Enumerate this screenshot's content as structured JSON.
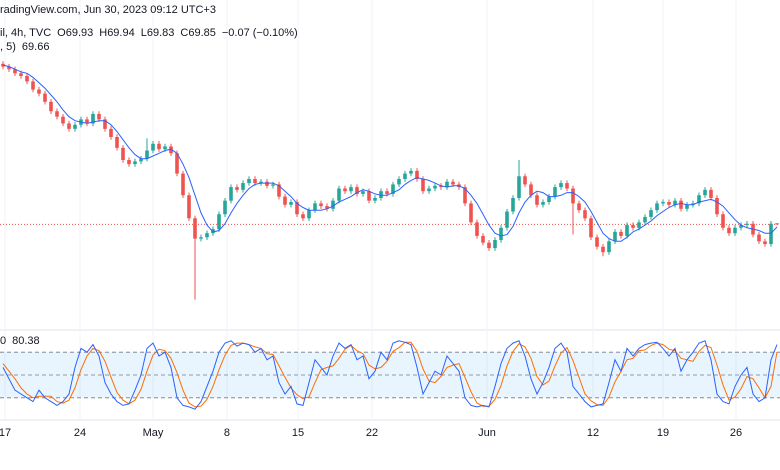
{
  "chart_data": {
    "type": "candlestick",
    "header": "radingView.com, Jun 30, 2023 09:12 UTC+3",
    "symbol": "il, 4h, TVC",
    "ohlc_labels": [
      "O69.93",
      "H69.94",
      "L69.83",
      "C69.85"
    ],
    "change": "−0.07 (−0.10%)",
    "up_color": "#26a69a",
    "down_color": "#ef5350",
    "xlim": [
      -0.5,
      129.5
    ],
    "ylim": [
      62.5,
      83.9
    ],
    "xticks": [
      {
        "value": 0.33,
        "label": "17"
      },
      {
        "value": 12.83,
        "label": "24"
      },
      {
        "value": 25,
        "label": "May"
      },
      {
        "value": 37.33,
        "label": "8"
      },
      {
        "value": 49.17,
        "label": "15"
      },
      {
        "value": 61.5,
        "label": "22"
      },
      {
        "value": 80.67,
        "label": "Jun"
      },
      {
        "value": 98.33,
        "label": "12"
      },
      {
        "value": 110,
        "label": "19"
      },
      {
        "value": 122.17,
        "label": "26"
      }
    ],
    "open": [
      81.7,
      81.5,
      81.3,
      81.0,
      80.8,
      80.4,
      79.8,
      79.5,
      78.9,
      78.2,
      77.8,
      77.3,
      76.9,
      77.2,
      77.6,
      77.3,
      78.0,
      77.6,
      76.9,
      76.3,
      75.5,
      74.6,
      74.3,
      74.5,
      74.7,
      75.3,
      75.8,
      75.4,
      75.6,
      75.1,
      73.6,
      72.0,
      70.3,
      68.8,
      68.9,
      69.2,
      69.5,
      70.6,
      71.6,
      72.6,
      72.4,
      72.9,
      73.2,
      72.9,
      73.0,
      72.7,
      72.8,
      71.9,
      71.3,
      71.5,
      70.6,
      70.3,
      70.9,
      71.4,
      71.2,
      71.0,
      71.6,
      72.5,
      72.3,
      72.6,
      72.1,
      72.3,
      71.6,
      71.8,
      72.3,
      72.1,
      72.8,
      73.2,
      73.6,
      73.8,
      73.2,
      72.3,
      72.5,
      72.7,
      72.6,
      73.0,
      72.8,
      72.6,
      71.4,
      70.0,
      69.0,
      68.5,
      68.1,
      68.7,
      69.6,
      70.8,
      71.8,
      73.4,
      72.8,
      72.0,
      71.3,
      71.5,
      71.9,
      72.6,
      72.9,
      72.5,
      71.4,
      70.9,
      70.3,
      68.9,
      68.2,
      67.8,
      68.6,
      69.3,
      69.0,
      69.8,
      69.6,
      70.0,
      70.4,
      70.9,
      71.4,
      71.5,
      71.3,
      71.6,
      71.0,
      71.3,
      71.4,
      72.0,
      72.4,
      71.8,
      70.6,
      69.6,
      69.2,
      69.6,
      69.8,
      69.9,
      69.1,
      68.6,
      68.4,
      69.93
    ],
    "high": [
      81.9,
      81.7,
      81.5,
      81.2,
      81.0,
      80.6,
      80.0,
      79.7,
      79.1,
      78.4,
      78.0,
      77.5,
      77.4,
      77.8,
      77.8,
      78.2,
      78.2,
      77.8,
      77.1,
      76.5,
      75.7,
      74.8,
      74.7,
      74.9,
      76.2,
      76.0,
      76.0,
      75.8,
      75.8,
      75.3,
      73.8,
      72.2,
      70.5,
      69.1,
      69.4,
      69.7,
      70.8,
      71.8,
      72.8,
      72.8,
      73.1,
      73.4,
      73.4,
      73.2,
      73.2,
      73.0,
      73.0,
      72.1,
      71.7,
      71.7,
      70.8,
      71.1,
      71.6,
      71.6,
      71.4,
      71.8,
      72.7,
      72.7,
      72.8,
      72.8,
      72.5,
      72.5,
      72.0,
      72.5,
      72.5,
      73.0,
      73.4,
      73.8,
      74.0,
      74.0,
      73.4,
      72.7,
      72.9,
      72.9,
      73.2,
      73.2,
      73.0,
      72.8,
      71.6,
      70.2,
      69.2,
      68.7,
      68.9,
      69.8,
      71.0,
      72.0,
      74.6,
      73.6,
      73.0,
      72.2,
      71.7,
      72.1,
      72.8,
      73.1,
      73.1,
      72.7,
      71.6,
      71.1,
      70.5,
      69.1,
      68.4,
      68.8,
      69.5,
      69.5,
      70.0,
      70.0,
      70.2,
      70.6,
      71.1,
      71.6,
      71.7,
      71.7,
      71.8,
      71.8,
      71.5,
      71.6,
      72.2,
      72.6,
      72.6,
      72.0,
      70.8,
      69.8,
      69.8,
      70.0,
      70.1,
      70.1,
      69.3,
      68.8,
      70.1,
      69.94
    ],
    "low": [
      81.3,
      81.1,
      80.8,
      80.6,
      80.2,
      79.6,
      79.3,
      78.7,
      78.0,
      77.6,
      77.1,
      76.7,
      76.7,
      77.0,
      77.1,
      77.1,
      77.4,
      76.7,
      76.1,
      75.3,
      74.4,
      74.1,
      74.1,
      74.3,
      74.5,
      75.1,
      75.2,
      75.2,
      74.9,
      73.4,
      71.8,
      70.1,
      64.3,
      68.6,
      68.7,
      69.0,
      69.3,
      70.4,
      71.4,
      72.2,
      72.2,
      72.7,
      72.7,
      72.7,
      72.5,
      72.5,
      71.7,
      71.1,
      71.1,
      70.4,
      70.1,
      70.1,
      70.7,
      71.0,
      70.8,
      70.8,
      71.4,
      72.1,
      72.1,
      71.9,
      71.9,
      71.4,
      71.4,
      71.6,
      71.9,
      71.9,
      72.6,
      73.0,
      73.4,
      73.0,
      72.1,
      72.1,
      72.3,
      72.4,
      72.4,
      72.6,
      72.4,
      71.2,
      69.8,
      68.8,
      68.3,
      67.9,
      67.9,
      68.5,
      69.4,
      70.6,
      71.6,
      72.6,
      71.8,
      71.1,
      71.1,
      71.3,
      71.7,
      72.4,
      72.3,
      69.1,
      70.7,
      70.1,
      68.7,
      68.0,
      67.5,
      67.6,
      68.4,
      68.8,
      68.8,
      69.4,
      69.4,
      69.8,
      70.2,
      70.7,
      71.2,
      71.1,
      71.1,
      70.8,
      70.8,
      71.1,
      71.2,
      71.8,
      71.6,
      70.4,
      69.4,
      69.0,
      69.0,
      69.4,
      69.6,
      68.9,
      68.4,
      68.2,
      68.2,
      69.83
    ],
    "close": [
      81.5,
      81.3,
      81.0,
      80.8,
      80.4,
      79.8,
      79.5,
      78.9,
      78.2,
      77.8,
      77.3,
      76.9,
      77.2,
      77.6,
      77.3,
      78.0,
      77.6,
      76.9,
      76.3,
      75.5,
      74.6,
      74.3,
      74.5,
      74.7,
      75.3,
      75.8,
      75.4,
      75.6,
      75.1,
      73.6,
      72.0,
      70.3,
      68.8,
      68.9,
      69.2,
      69.5,
      70.6,
      71.6,
      72.6,
      72.4,
      72.9,
      73.2,
      72.9,
      73.0,
      72.7,
      72.8,
      71.9,
      71.3,
      71.5,
      70.6,
      70.3,
      70.9,
      71.4,
      71.2,
      71.0,
      71.6,
      72.5,
      72.3,
      72.6,
      72.1,
      72.3,
      71.6,
      71.8,
      72.3,
      72.1,
      72.8,
      73.2,
      73.6,
      73.8,
      73.2,
      72.3,
      72.5,
      72.7,
      72.6,
      73.0,
      72.8,
      72.6,
      71.4,
      70.0,
      69.0,
      68.5,
      68.1,
      68.7,
      69.6,
      70.8,
      71.8,
      73.4,
      72.8,
      72.0,
      71.3,
      71.5,
      71.9,
      72.6,
      72.9,
      72.5,
      71.4,
      70.9,
      70.3,
      68.9,
      68.2,
      67.8,
      68.6,
      69.3,
      69.0,
      69.8,
      69.6,
      70.0,
      70.4,
      70.9,
      71.4,
      71.5,
      71.3,
      71.6,
      71.0,
      71.3,
      71.4,
      72.0,
      72.4,
      71.8,
      70.6,
      69.6,
      69.2,
      69.6,
      69.8,
      69.9,
      69.1,
      68.6,
      68.4,
      69.9,
      69.85
    ],
    "ma": {
      "label": ", 5)",
      "color": "#2962ff",
      "values": [
        81.6,
        81.5,
        81.3,
        81.1,
        81.0,
        80.7,
        80.3,
        79.9,
        79.4,
        78.9,
        78.3,
        77.8,
        77.5,
        77.4,
        77.3,
        77.4,
        77.5,
        77.5,
        77.2,
        76.7,
        76.1,
        75.5,
        75.0,
        74.7,
        74.7,
        74.9,
        75.1,
        75.3,
        75.4,
        75.1,
        74.3,
        73.3,
        72.0,
        70.7,
        69.8,
        69.3,
        69.4,
        69.9,
        70.7,
        71.4,
        72.0,
        72.5,
        72.8,
        72.9,
        72.9,
        72.9,
        72.7,
        72.3,
        71.9,
        71.4,
        71.1,
        70.9,
        70.9,
        70.9,
        71.0,
        71.2,
        71.5,
        71.7,
        71.9,
        72.2,
        72.4,
        72.3,
        72.1,
        72.0,
        72.0,
        72.2,
        72.4,
        72.8,
        73.1,
        73.3,
        73.2,
        73.1,
        72.9,
        72.7,
        72.6,
        72.7,
        72.7,
        72.5,
        72.0,
        71.4,
        70.6,
        69.8,
        69.2,
        69.0,
        69.1,
        69.7,
        70.7,
        71.5,
        72.0,
        72.3,
        72.2,
        71.9,
        71.9,
        72.0,
        72.2,
        72.2,
        71.9,
        71.5,
        70.8,
        70.0,
        69.2,
        68.8,
        68.6,
        68.6,
        68.9,
        69.3,
        69.5,
        69.8,
        70.1,
        70.5,
        70.8,
        71.1,
        71.3,
        71.4,
        71.3,
        71.3,
        71.5,
        71.6,
        71.7,
        71.5,
        71.2,
        70.7,
        70.2,
        69.8,
        69.6,
        69.5,
        69.4,
        69.2,
        69.2,
        69.66
      ]
    },
    "stochastic": {
      "name": "0",
      "ylim": [
        0,
        100
      ],
      "levels": [
        80,
        50,
        20
      ],
      "k": {
        "color": "#2962ff",
        "values": [
          60,
          45,
          30,
          25,
          20,
          15,
          30,
          20,
          15,
          10,
          15,
          25,
          60,
          85,
          80,
          90,
          75,
          40,
          25,
          15,
          10,
          12,
          30,
          50,
          85,
          92,
          75,
          80,
          60,
          20,
          10,
          8,
          5,
          15,
          35,
          55,
          80,
          92,
          95,
          88,
          92,
          90,
          80,
          85,
          70,
          75,
          40,
          25,
          35,
          12,
          10,
          40,
          70,
          60,
          50,
          75,
          92,
          85,
          90,
          70,
          75,
          45,
          55,
          80,
          70,
          92,
          95,
          93,
          90,
          60,
          25,
          40,
          55,
          50,
          75,
          65,
          55,
          20,
          10,
          8,
          10,
          8,
          35,
          65,
          85,
          92,
          95,
          75,
          45,
          25,
          40,
          60,
          85,
          92,
          80,
          35,
          25,
          15,
          8,
          10,
          12,
          40,
          70,
          55,
          85,
          75,
          85,
          90,
          92,
          93,
          85,
          75,
          85,
          55,
          70,
          80,
          92,
          95,
          70,
          25,
          15,
          12,
          35,
          50,
          60,
          25,
          15,
          20,
          70,
          90
        ]
      },
      "d": {
        "color": "#ff6d00",
        "values": [
          65,
          55,
          45,
          33,
          25,
          20,
          22,
          22,
          22,
          15,
          13,
          17,
          33,
          57,
          75,
          85,
          82,
          68,
          47,
          27,
          17,
          12,
          17,
          31,
          55,
          76,
          84,
          82,
          72,
          53,
          30,
          13,
          8,
          9,
          18,
          35,
          57,
          76,
          89,
          92,
          92,
          90,
          87,
          85,
          78,
          77,
          62,
          47,
          33,
          24,
          19,
          21,
          40,
          57,
          60,
          62,
          72,
          84,
          89,
          82,
          78,
          63,
          58,
          60,
          68,
          81,
          86,
          93,
          93,
          81,
          58,
          42,
          40,
          48,
          60,
          63,
          65,
          47,
          28,
          13,
          9,
          9,
          18,
          36,
          62,
          81,
          91,
          87,
          72,
          48,
          37,
          42,
          62,
          79,
          86,
          69,
          47,
          25,
          16,
          11,
          10,
          21,
          41,
          55,
          70,
          72,
          82,
          83,
          89,
          92,
          90,
          84,
          82,
          72,
          70,
          68,
          81,
          89,
          86,
          63,
          37,
          17,
          21,
          32,
          48,
          45,
          33,
          20,
          35,
          80.38
        ]
      }
    }
  }
}
